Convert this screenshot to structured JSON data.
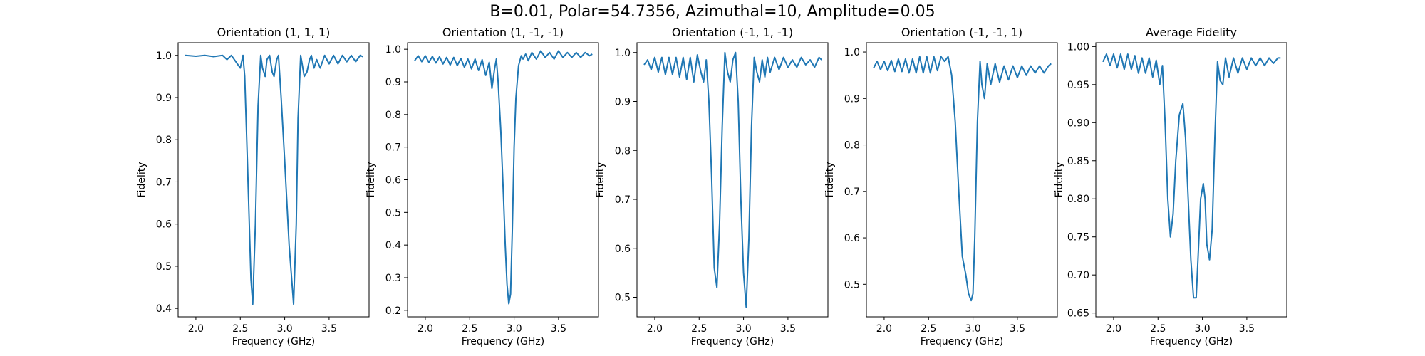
{
  "figure": {
    "suptitle": "B=0.01, Polar=54.7356, Azimuthal=10, Amplitude=0.05"
  },
  "chart_data": [
    {
      "type": "line",
      "title": "Orientation (1, 1, 1)",
      "xlabel": "Frequency (GHz)",
      "ylabel": "Fidelity",
      "xlim": [
        1.8,
        3.95
      ],
      "ylim": [
        0.38,
        1.03
      ],
      "xticks": [
        2.0,
        2.5,
        3.0,
        3.5
      ],
      "yticks": [
        0.4,
        0.5,
        0.6,
        0.7,
        0.8,
        0.9,
        1.0
      ],
      "ytick_labels": [
        "0.4",
        "0.5",
        "0.6",
        "0.7",
        "0.8",
        "0.9",
        "1.0"
      ],
      "line_color": "#1f77b4",
      "series": [
        {
          "x": [
            1.88,
            2.0,
            2.1,
            2.2,
            2.3,
            2.35,
            2.4,
            2.45,
            2.5,
            2.53,
            2.55,
            2.58,
            2.62,
            2.64,
            2.67,
            2.7,
            2.73,
            2.75,
            2.78,
            2.8,
            2.83,
            2.86,
            2.88,
            2.91,
            2.93,
            2.96,
            3.0,
            3.05,
            3.1,
            3.13,
            3.15,
            3.18,
            3.22,
            3.25,
            3.28,
            3.3,
            3.33,
            3.36,
            3.4,
            3.45,
            3.5,
            3.55,
            3.6,
            3.65,
            3.7,
            3.75,
            3.8,
            3.85,
            3.88
          ],
          "y": [
            1.0,
            0.998,
            1.0,
            0.997,
            1.0,
            0.99,
            1.0,
            0.985,
            0.97,
            1.0,
            0.95,
            0.75,
            0.47,
            0.41,
            0.6,
            0.88,
            1.0,
            0.97,
            0.95,
            0.99,
            1.0,
            0.96,
            0.95,
            0.99,
            1.0,
            0.9,
            0.75,
            0.55,
            0.41,
            0.6,
            0.85,
            1.0,
            0.95,
            0.96,
            0.99,
            1.0,
            0.97,
            0.99,
            0.97,
            1.0,
            0.98,
            1.0,
            0.98,
            1.0,
            0.985,
            1.0,
            0.985,
            1.0,
            0.997
          ]
        }
      ]
    },
    {
      "type": "line",
      "title": "Orientation (1, -1, -1)",
      "xlabel": "Frequency (GHz)",
      "ylabel": "Fidelity",
      "xlim": [
        1.8,
        3.95
      ],
      "ylim": [
        0.18,
        1.02
      ],
      "xticks": [
        2.0,
        2.5,
        3.0,
        3.5
      ],
      "yticks": [
        0.2,
        0.3,
        0.4,
        0.5,
        0.6,
        0.7,
        0.8,
        0.9,
        1.0
      ],
      "ytick_labels": [
        "0.2",
        "0.3",
        "0.4",
        "0.5",
        "0.6",
        "0.7",
        "0.8",
        "0.9",
        "1.0"
      ],
      "line_color": "#1f77b4",
      "series": [
        {
          "x": [
            1.88,
            1.92,
            1.96,
            2.0,
            2.04,
            2.08,
            2.12,
            2.16,
            2.2,
            2.24,
            2.28,
            2.32,
            2.36,
            2.4,
            2.44,
            2.48,
            2.52,
            2.56,
            2.6,
            2.64,
            2.68,
            2.72,
            2.75,
            2.78,
            2.8,
            2.82,
            2.85,
            2.88,
            2.9,
            2.92,
            2.94,
            2.96,
            2.98,
            3.0,
            3.02,
            3.05,
            3.08,
            3.1,
            3.13,
            3.16,
            3.2,
            3.25,
            3.3,
            3.35,
            3.4,
            3.45,
            3.5,
            3.55,
            3.6,
            3.65,
            3.7,
            3.75,
            3.8,
            3.85,
            3.88
          ],
          "y": [
            0.965,
            0.98,
            0.962,
            0.98,
            0.96,
            0.978,
            0.958,
            0.977,
            0.955,
            0.975,
            0.952,
            0.975,
            0.95,
            0.972,
            0.945,
            0.97,
            0.94,
            0.97,
            0.935,
            0.968,
            0.92,
            0.96,
            0.88,
            0.94,
            0.97,
            0.9,
            0.75,
            0.55,
            0.4,
            0.28,
            0.22,
            0.25,
            0.45,
            0.7,
            0.85,
            0.95,
            0.98,
            0.97,
            0.985,
            0.965,
            0.99,
            0.97,
            0.995,
            0.975,
            0.99,
            0.97,
            0.995,
            0.975,
            0.99,
            0.975,
            0.99,
            0.975,
            0.99,
            0.98,
            0.985
          ]
        }
      ]
    },
    {
      "type": "line",
      "title": "Orientation (-1, 1, -1)",
      "xlabel": "Frequency (GHz)",
      "ylabel": "Fidelity",
      "xlim": [
        1.8,
        3.95
      ],
      "ylim": [
        0.46,
        1.02
      ],
      "xticks": [
        2.0,
        2.5,
        3.0,
        3.5
      ],
      "yticks": [
        0.5,
        0.6,
        0.7,
        0.8,
        0.9,
        1.0
      ],
      "ytick_labels": [
        "0.5",
        "0.6",
        "0.7",
        "0.8",
        "0.9",
        "1.0"
      ],
      "line_color": "#1f77b4",
      "series": [
        {
          "x": [
            1.88,
            1.92,
            1.96,
            2.0,
            2.04,
            2.08,
            2.12,
            2.16,
            2.2,
            2.24,
            2.28,
            2.32,
            2.36,
            2.4,
            2.44,
            2.48,
            2.52,
            2.55,
            2.58,
            2.61,
            2.64,
            2.67,
            2.7,
            2.73,
            2.76,
            2.79,
            2.82,
            2.85,
            2.88,
            2.91,
            2.94,
            2.97,
            3.0,
            3.03,
            3.06,
            3.09,
            3.12,
            3.15,
            3.18,
            3.21,
            3.24,
            3.27,
            3.3,
            3.35,
            3.4,
            3.45,
            3.5,
            3.55,
            3.6,
            3.65,
            3.7,
            3.75,
            3.8,
            3.85,
            3.88
          ],
          "y": [
            0.975,
            0.985,
            0.965,
            0.99,
            0.96,
            0.99,
            0.955,
            0.99,
            0.955,
            0.99,
            0.95,
            0.99,
            0.945,
            0.99,
            0.94,
            0.995,
            0.96,
            0.94,
            0.985,
            0.9,
            0.75,
            0.56,
            0.52,
            0.65,
            0.85,
            1.0,
            0.96,
            0.94,
            0.985,
            1.0,
            0.9,
            0.7,
            0.55,
            0.48,
            0.62,
            0.85,
            0.99,
            0.96,
            0.94,
            0.985,
            0.95,
            0.99,
            0.96,
            0.99,
            0.965,
            0.99,
            0.97,
            0.985,
            0.97,
            0.99,
            0.975,
            0.985,
            0.97,
            0.99,
            0.985
          ]
        }
      ]
    },
    {
      "type": "line",
      "title": "Orientation (-1, -1, 1)",
      "xlabel": "Frequency (GHz)",
      "ylabel": "Fidelity",
      "xlim": [
        1.8,
        3.95
      ],
      "ylim": [
        0.43,
        1.02
      ],
      "xticks": [
        2.0,
        2.5,
        3.0,
        3.5
      ],
      "yticks": [
        0.5,
        0.6,
        0.7,
        0.8,
        0.9,
        1.0
      ],
      "ytick_labels": [
        "0.5",
        "0.6",
        "0.7",
        "0.8",
        "0.9",
        "1.0"
      ],
      "line_color": "#1f77b4",
      "series": [
        {
          "x": [
            1.88,
            1.92,
            1.96,
            2.0,
            2.04,
            2.08,
            2.12,
            2.16,
            2.2,
            2.24,
            2.28,
            2.32,
            2.36,
            2.4,
            2.44,
            2.48,
            2.52,
            2.56,
            2.6,
            2.64,
            2.68,
            2.72,
            2.76,
            2.8,
            2.84,
            2.88,
            2.92,
            2.95,
            2.98,
            3.0,
            3.02,
            3.05,
            3.08,
            3.1,
            3.13,
            3.16,
            3.2,
            3.25,
            3.3,
            3.35,
            3.4,
            3.45,
            3.5,
            3.55,
            3.6,
            3.65,
            3.7,
            3.75,
            3.8,
            3.85,
            3.88
          ],
          "y": [
            0.965,
            0.98,
            0.962,
            0.98,
            0.96,
            0.982,
            0.958,
            0.985,
            0.958,
            0.985,
            0.955,
            0.985,
            0.955,
            0.99,
            0.955,
            0.99,
            0.955,
            0.99,
            0.96,
            0.99,
            0.98,
            0.99,
            0.95,
            0.85,
            0.7,
            0.56,
            0.52,
            0.48,
            0.465,
            0.48,
            0.6,
            0.85,
            0.98,
            0.93,
            0.9,
            0.975,
            0.93,
            0.975,
            0.935,
            0.97,
            0.94,
            0.97,
            0.945,
            0.97,
            0.95,
            0.97,
            0.955,
            0.97,
            0.955,
            0.97,
            0.975
          ]
        }
      ]
    },
    {
      "type": "line",
      "title": "Average Fidelity",
      "xlabel": "Frequency (GHz)",
      "ylabel": "Fidelity",
      "xlim": [
        1.8,
        3.95
      ],
      "ylim": [
        0.645,
        1.005
      ],
      "xticks": [
        2.0,
        2.5,
        3.0,
        3.5
      ],
      "yticks": [
        0.65,
        0.7,
        0.75,
        0.8,
        0.85,
        0.9,
        0.95,
        1.0
      ],
      "ytick_labels": [
        "0.65",
        "0.70",
        "0.75",
        "0.80",
        "0.85",
        "0.90",
        "0.95",
        "1.00"
      ],
      "line_color": "#1f77b4",
      "series": [
        {
          "x": [
            1.88,
            1.92,
            1.96,
            2.0,
            2.04,
            2.08,
            2.12,
            2.16,
            2.2,
            2.24,
            2.28,
            2.32,
            2.36,
            2.4,
            2.44,
            2.48,
            2.52,
            2.55,
            2.58,
            2.61,
            2.64,
            2.67,
            2.7,
            2.74,
            2.78,
            2.81,
            2.84,
            2.87,
            2.9,
            2.93,
            2.95,
            2.98,
            3.01,
            3.03,
            3.05,
            3.08,
            3.11,
            3.14,
            3.17,
            3.2,
            3.23,
            3.26,
            3.3,
            3.35,
            3.4,
            3.45,
            3.5,
            3.55,
            3.6,
            3.65,
            3.7,
            3.75,
            3.8,
            3.85,
            3.88
          ],
          "y": [
            0.98,
            0.99,
            0.975,
            0.99,
            0.972,
            0.99,
            0.97,
            0.99,
            0.97,
            0.988,
            0.965,
            0.985,
            0.965,
            0.985,
            0.96,
            0.982,
            0.95,
            0.975,
            0.9,
            0.8,
            0.75,
            0.78,
            0.85,
            0.91,
            0.925,
            0.88,
            0.8,
            0.72,
            0.67,
            0.67,
            0.72,
            0.8,
            0.82,
            0.8,
            0.74,
            0.72,
            0.76,
            0.88,
            0.98,
            0.955,
            0.95,
            0.985,
            0.96,
            0.985,
            0.965,
            0.985,
            0.97,
            0.985,
            0.975,
            0.985,
            0.975,
            0.985,
            0.978,
            0.985,
            0.985
          ]
        }
      ]
    }
  ]
}
